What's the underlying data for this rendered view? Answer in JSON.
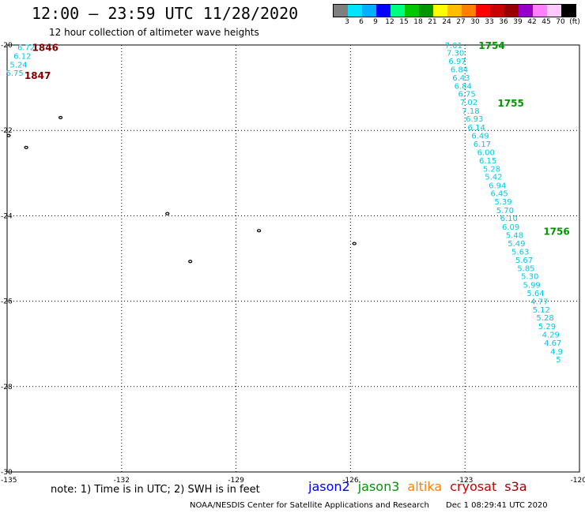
{
  "header": {
    "title": "12:00 – 23:59 UTC 11/28/2020",
    "subtitle": "12 hour collection of altimeter wave heights"
  },
  "legend": {
    "colors": [
      "#7f7f7f",
      "#00e5ff",
      "#00b0ff",
      "#0000ff",
      "#00ff7f",
      "#00c800",
      "#009600",
      "#ffff00",
      "#ffbf00",
      "#ff8000",
      "#ff0000",
      "#c80000",
      "#960000",
      "#9600c8",
      "#ff7fff",
      "#ffc8ff",
      "#000000"
    ],
    "labels": [
      "3",
      "6",
      "9",
      "12",
      "15",
      "18",
      "21",
      "24",
      "27",
      "30",
      "33",
      "36",
      "39",
      "42",
      "45",
      "70"
    ],
    "unit": "(ft)"
  },
  "map": {
    "lat_labels": [
      "-20",
      "-22",
      "-24",
      "-26",
      "-28",
      "-30"
    ],
    "lon_labels": [
      "-135",
      "-132",
      "-129",
      "-126",
      "-123",
      "-120"
    ]
  },
  "chart_data": {
    "type": "scatter",
    "lat_range": [
      -30,
      -20
    ],
    "lon_range": [
      -135,
      -120
    ],
    "grid": true,
    "tracks": [
      {
        "mission": "cryosat",
        "times": [
          {
            "label": "1846",
            "lon": -134.0,
            "lat": -20.05
          },
          {
            "label": "1847",
            "lon": -134.2,
            "lat": -20.7
          }
        ],
        "points": [
          {
            "lon": -134.5,
            "lat": -20.05,
            "swh": "6.72"
          },
          {
            "lon": -134.6,
            "lat": -20.25,
            "swh": "6.12"
          },
          {
            "lon": -134.7,
            "lat": -20.45,
            "swh": "5.24"
          },
          {
            "lon": -134.8,
            "lat": -20.65,
            "swh": "5.75"
          }
        ]
      },
      {
        "mission": "jason3",
        "times": [
          {
            "label": "1754",
            "lon": -122.3,
            "lat": -20.0
          },
          {
            "label": "1755",
            "lon": -121.8,
            "lat": -21.35
          },
          {
            "label": "1756",
            "lon": -120.6,
            "lat": -24.35
          }
        ],
        "points": [
          {
            "lon": -123.3,
            "lat": -20.0,
            "swh": "7.01"
          },
          {
            "lon": -123.25,
            "lat": -20.18,
            "swh": "7.30"
          },
          {
            "lon": -123.2,
            "lat": -20.37,
            "swh": "6.97"
          },
          {
            "lon": -123.15,
            "lat": -20.56,
            "swh": "6.84"
          },
          {
            "lon": -123.1,
            "lat": -20.76,
            "swh": "6.43"
          },
          {
            "lon": -123.05,
            "lat": -20.95,
            "swh": "6.84"
          },
          {
            "lon": -122.95,
            "lat": -21.14,
            "swh": "6.75"
          },
          {
            "lon": -122.9,
            "lat": -21.33,
            "swh": "7.02"
          },
          {
            "lon": -122.85,
            "lat": -21.53,
            "swh": "7.18"
          },
          {
            "lon": -122.75,
            "lat": -21.72,
            "swh": "6.93"
          },
          {
            "lon": -122.7,
            "lat": -21.92,
            "swh": "6.14"
          },
          {
            "lon": -122.6,
            "lat": -22.12,
            "swh": "6.49"
          },
          {
            "lon": -122.55,
            "lat": -22.31,
            "swh": "6.17"
          },
          {
            "lon": -122.45,
            "lat": -22.5,
            "swh": "6.00"
          },
          {
            "lon": -122.4,
            "lat": -22.7,
            "swh": "6.15"
          },
          {
            "lon": -122.3,
            "lat": -22.89,
            "swh": "5.28"
          },
          {
            "lon": -122.25,
            "lat": -23.08,
            "swh": "5.42"
          },
          {
            "lon": -122.15,
            "lat": -23.28,
            "swh": "6.94"
          },
          {
            "lon": -122.1,
            "lat": -23.47,
            "swh": "6.45"
          },
          {
            "lon": -122.0,
            "lat": -23.66,
            "swh": "5.39"
          },
          {
            "lon": -121.95,
            "lat": -23.86,
            "swh": "5.70"
          },
          {
            "lon": -121.85,
            "lat": -24.05,
            "swh": "6.10"
          },
          {
            "lon": -121.8,
            "lat": -24.25,
            "swh": "6.09"
          },
          {
            "lon": -121.7,
            "lat": -24.45,
            "swh": "5.48"
          },
          {
            "lon": -121.65,
            "lat": -24.64,
            "swh": "5.49"
          },
          {
            "lon": -121.55,
            "lat": -24.83,
            "swh": "5.63"
          },
          {
            "lon": -121.45,
            "lat": -25.03,
            "swh": "5.67"
          },
          {
            "lon": -121.4,
            "lat": -25.22,
            "swh": "5.85"
          },
          {
            "lon": -121.3,
            "lat": -25.41,
            "swh": "5.30"
          },
          {
            "lon": -121.25,
            "lat": -25.61,
            "swh": "5.99"
          },
          {
            "lon": -121.15,
            "lat": -25.8,
            "swh": "5.64"
          },
          {
            "lon": -121.05,
            "lat": -26.0,
            "swh": "4.77"
          },
          {
            "lon": -121.0,
            "lat": -26.19,
            "swh": "5.12"
          },
          {
            "lon": -120.9,
            "lat": -26.38,
            "swh": "5.28"
          },
          {
            "lon": -120.85,
            "lat": -26.58,
            "swh": "5.29"
          },
          {
            "lon": -120.75,
            "lat": -26.77,
            "swh": "4.29"
          },
          {
            "lon": -120.7,
            "lat": -26.97,
            "swh": "4.67"
          },
          {
            "lon": -120.6,
            "lat": -27.17,
            "swh": "4.9"
          },
          {
            "lon": -120.55,
            "lat": -27.36,
            "swh": "5"
          }
        ]
      }
    ],
    "islands": [
      {
        "lon": -133.6,
        "lat": -21.7
      },
      {
        "lon": -134.96,
        "lat": -22.12
      },
      {
        "lon": -134.5,
        "lat": -22.4
      },
      {
        "lon": -130.8,
        "lat": -23.95
      },
      {
        "lon": -128.4,
        "lat": -24.35
      },
      {
        "lon": -130.2,
        "lat": -25.07
      },
      {
        "lon": -125.9,
        "lat": -24.65
      }
    ]
  },
  "footer": {
    "note": "note: 1) Time is in UTC; 2) SWH is in feet",
    "missions": [
      {
        "name": "jason2",
        "color": "#0000ff"
      },
      {
        "name": "jason3",
        "color": "#009600"
      },
      {
        "name": "altika",
        "color": "#ff8000"
      },
      {
        "name": "cryosat",
        "color": "#c80000"
      },
      {
        "name": "s3a",
        "color": "#960000"
      }
    ],
    "credit": "NOAA/NESDIS Center for Satellite Applications and Research",
    "timestamp": "Dec  1 08:29:41 UTC 2020"
  },
  "colors": {
    "swh_label": "#00c8e8",
    "time_jason3": "#009600",
    "time_cryosat": "#800000"
  }
}
